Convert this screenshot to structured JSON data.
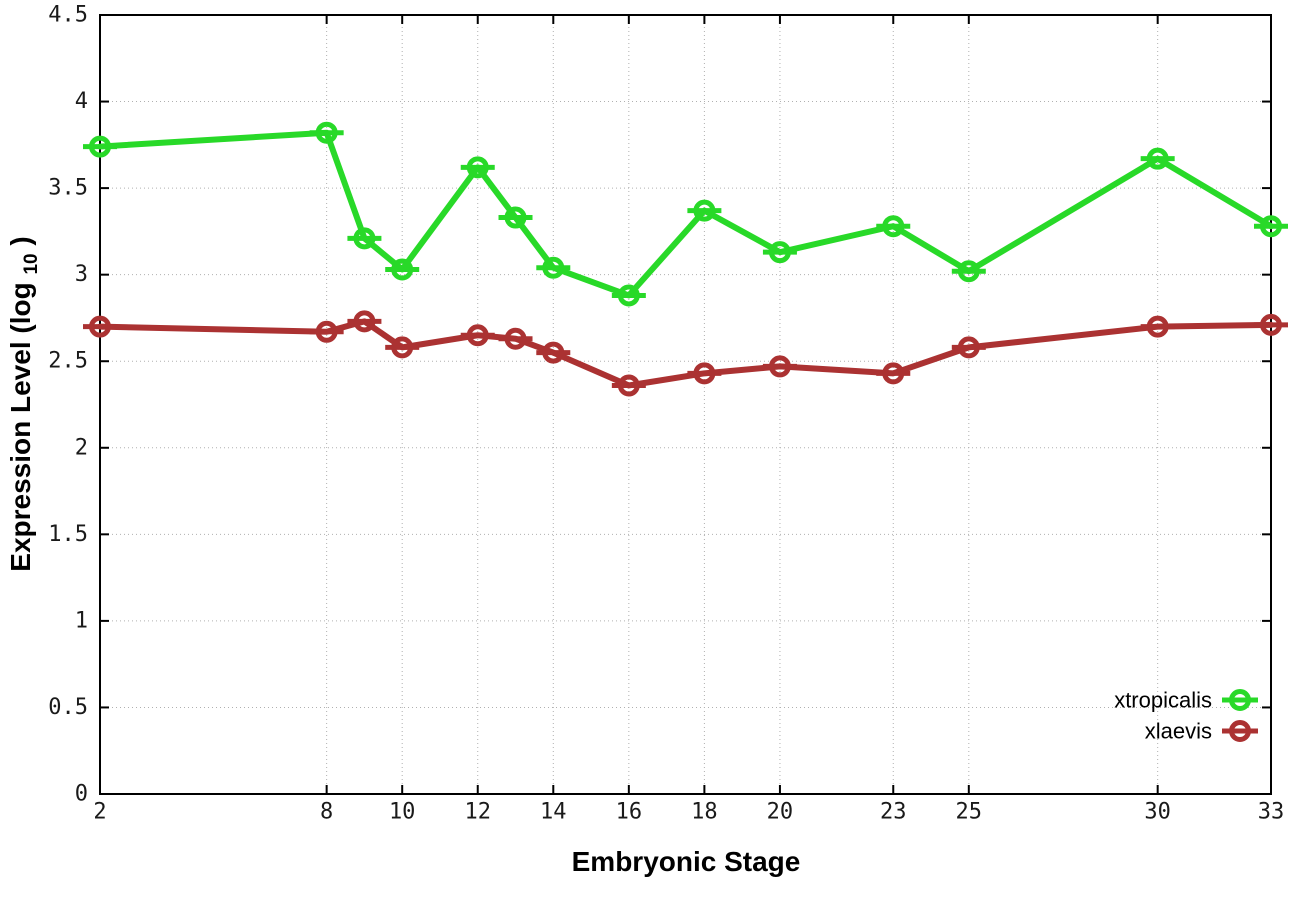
{
  "chart_data": {
    "type": "line",
    "title": "",
    "xlabel": "Embryonic Stage",
    "ylabel": "Expression Level (log10)",
    "ylabel_parts": {
      "prefix": "Expression Level (log",
      "sub": "10",
      "suffix": ")"
    },
    "xlim": [
      2,
      33
    ],
    "ylim": [
      0,
      4.5
    ],
    "grid": true,
    "grid_style": "dotted",
    "legend_position": "bottom-right",
    "marker": "open-circle-with-error-cap",
    "x": [
      2,
      8,
      9,
      10,
      12,
      13,
      14,
      16,
      18,
      20,
      23,
      25,
      30,
      33
    ],
    "xticks": {
      "values": [
        2,
        8,
        10,
        12,
        14,
        16,
        18,
        20,
        23,
        25,
        30,
        33
      ],
      "labels": [
        "2",
        "8",
        "10",
        "12",
        "14",
        "16",
        "18",
        "20",
        "23",
        "25",
        "30",
        "33"
      ]
    },
    "yticks": {
      "values": [
        0,
        0.5,
        1,
        1.5,
        2,
        2.5,
        3,
        3.5,
        4,
        4.5
      ],
      "labels": [
        "0",
        "0.5",
        "1",
        "1.5",
        "2",
        "2.5",
        "3",
        "3.5",
        "4",
        "4.5"
      ]
    },
    "series": [
      {
        "name": "xtropicalis",
        "color": "#28d928",
        "values": [
          3.74,
          3.82,
          3.21,
          3.03,
          3.62,
          3.33,
          3.04,
          2.88,
          3.37,
          3.13,
          3.28,
          3.02,
          3.67,
          3.28
        ]
      },
      {
        "name": "xlaevis",
        "color": "#ab3232",
        "values": [
          2.7,
          2.67,
          2.73,
          2.58,
          2.65,
          2.63,
          2.55,
          2.36,
          2.43,
          2.47,
          2.43,
          2.58,
          2.7,
          2.71
        ]
      }
    ]
  },
  "colors": {
    "background": "#ffffff",
    "axis": "#000000",
    "grid": "#b0b0b0",
    "tick_text": "#1a1a1a",
    "title_text": "#000000"
  }
}
